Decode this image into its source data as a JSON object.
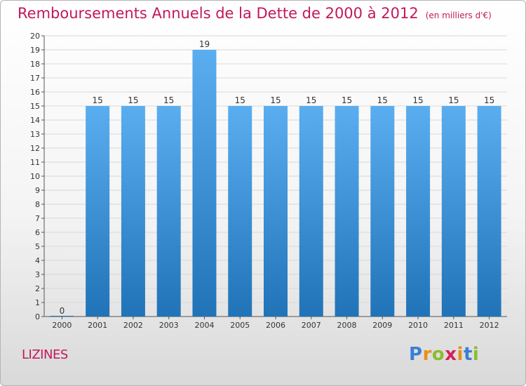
{
  "title": "Remboursements Annuels de la Dette de 2000 à 2012",
  "unit_note": "(en milliers d'€)",
  "commune": "LIZINES",
  "logo": {
    "text": "Proxiti",
    "letter_colors": [
      "#3a7fd4",
      "#e8901a",
      "#8bbd2e",
      "#d4205c",
      "#e8901a",
      "#3a7fd4",
      "#8bbd2e"
    ]
  },
  "colors": {
    "bar_top": "#5aaef0",
    "bar_bottom": "#2173b8",
    "title": "#c2185b",
    "axis_text": "#333333",
    "grid": "#d8d8d8"
  },
  "chart_data": {
    "type": "bar",
    "categories": [
      "2000",
      "2001",
      "2002",
      "2003",
      "2004",
      "2005",
      "2006",
      "2007",
      "2008",
      "2009",
      "2010",
      "2011",
      "2012"
    ],
    "values": [
      0,
      15,
      15,
      15,
      19,
      15,
      15,
      15,
      15,
      15,
      15,
      15,
      15
    ],
    "data_labels": [
      "0",
      "15",
      "15",
      "15",
      "19",
      "15",
      "15",
      "15",
      "15",
      "15",
      "15",
      "15",
      "15"
    ],
    "y_ticks": [
      "0",
      "1",
      "2",
      "3",
      "4",
      "5",
      "6",
      "7",
      "8",
      "9",
      "10",
      "11",
      "12",
      "13",
      "14",
      "15",
      "16",
      "17",
      "18",
      "19",
      "20"
    ],
    "ylim": [
      0,
      20
    ],
    "grid": true,
    "legend": "none"
  }
}
